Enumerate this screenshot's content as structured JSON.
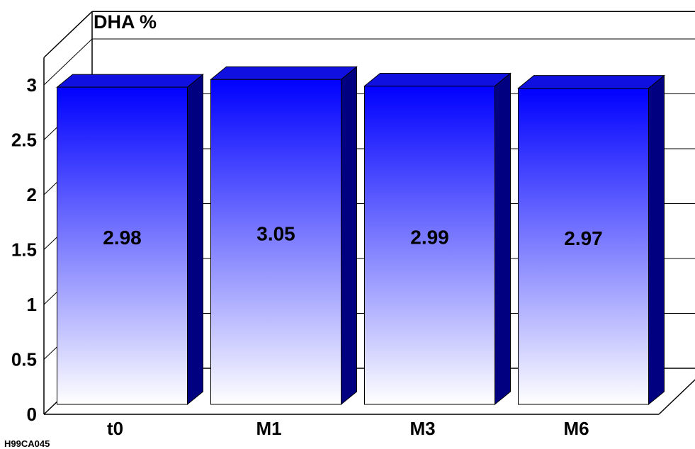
{
  "chart_data": {
    "type": "bar",
    "title": "DHA %",
    "footnote": "H99CA045",
    "xlabel": "",
    "ylabel": "",
    "categories": [
      "t0",
      "M1",
      "M3",
      "M6"
    ],
    "values": [
      2.98,
      3.05,
      2.99,
      2.97
    ],
    "value_labels": [
      "2.98",
      "3.05",
      "2.99",
      "2.97"
    ],
    "y_ticks": [
      "0",
      "0.5",
      "1",
      "1.5",
      "2",
      "2.5",
      "3"
    ],
    "ylim": [
      0,
      3.25
    ],
    "grid": true,
    "three_d": true,
    "legend": "none",
    "colors": {
      "bar_top": "#0000ff",
      "bar_bottom": "#ffffff",
      "bar_side": "#000080",
      "bar_cap": "#1010e0",
      "axis": "#000000"
    }
  }
}
